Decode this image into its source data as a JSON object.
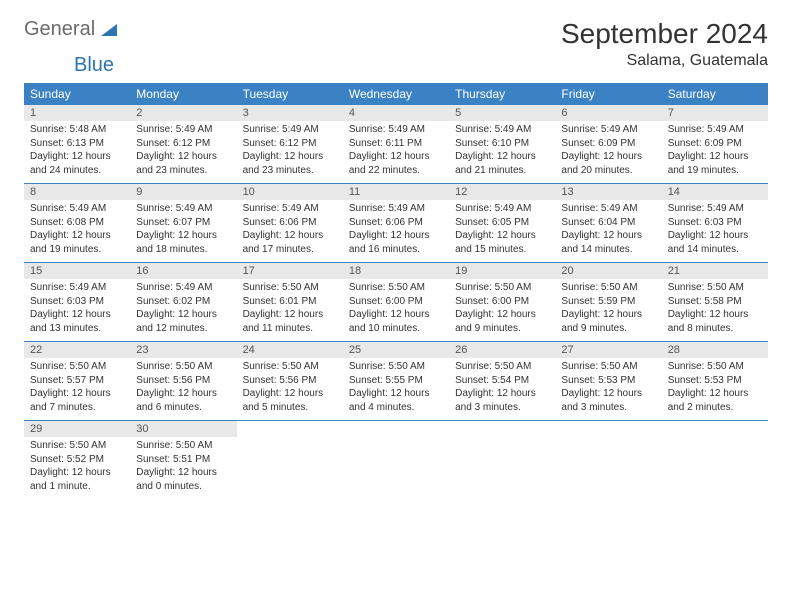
{
  "logo": {
    "text1": "General",
    "text2": "Blue"
  },
  "title": {
    "month": "September 2024",
    "location": "Salama, Guatemala"
  },
  "colors": {
    "header_bg": "#3b82c4",
    "header_text": "#ffffff",
    "daynum_bg": "#e8e8e8",
    "row_border": "#3b82c4",
    "body_text": "#333333",
    "logo_gray": "#6b6b6b",
    "logo_blue": "#2e74b5"
  },
  "weekdays": [
    "Sunday",
    "Monday",
    "Tuesday",
    "Wednesday",
    "Thursday",
    "Friday",
    "Saturday"
  ],
  "weeks": [
    [
      {
        "n": "1",
        "sr": "5:48 AM",
        "ss": "6:13 PM",
        "dl": "12 hours and 24 minutes."
      },
      {
        "n": "2",
        "sr": "5:49 AM",
        "ss": "6:12 PM",
        "dl": "12 hours and 23 minutes."
      },
      {
        "n": "3",
        "sr": "5:49 AM",
        "ss": "6:12 PM",
        "dl": "12 hours and 23 minutes."
      },
      {
        "n": "4",
        "sr": "5:49 AM",
        "ss": "6:11 PM",
        "dl": "12 hours and 22 minutes."
      },
      {
        "n": "5",
        "sr": "5:49 AM",
        "ss": "6:10 PM",
        "dl": "12 hours and 21 minutes."
      },
      {
        "n": "6",
        "sr": "5:49 AM",
        "ss": "6:09 PM",
        "dl": "12 hours and 20 minutes."
      },
      {
        "n": "7",
        "sr": "5:49 AM",
        "ss": "6:09 PM",
        "dl": "12 hours and 19 minutes."
      }
    ],
    [
      {
        "n": "8",
        "sr": "5:49 AM",
        "ss": "6:08 PM",
        "dl": "12 hours and 19 minutes."
      },
      {
        "n": "9",
        "sr": "5:49 AM",
        "ss": "6:07 PM",
        "dl": "12 hours and 18 minutes."
      },
      {
        "n": "10",
        "sr": "5:49 AM",
        "ss": "6:06 PM",
        "dl": "12 hours and 17 minutes."
      },
      {
        "n": "11",
        "sr": "5:49 AM",
        "ss": "6:06 PM",
        "dl": "12 hours and 16 minutes."
      },
      {
        "n": "12",
        "sr": "5:49 AM",
        "ss": "6:05 PM",
        "dl": "12 hours and 15 minutes."
      },
      {
        "n": "13",
        "sr": "5:49 AM",
        "ss": "6:04 PM",
        "dl": "12 hours and 14 minutes."
      },
      {
        "n": "14",
        "sr": "5:49 AM",
        "ss": "6:03 PM",
        "dl": "12 hours and 14 minutes."
      }
    ],
    [
      {
        "n": "15",
        "sr": "5:49 AM",
        "ss": "6:03 PM",
        "dl": "12 hours and 13 minutes."
      },
      {
        "n": "16",
        "sr": "5:49 AM",
        "ss": "6:02 PM",
        "dl": "12 hours and 12 minutes."
      },
      {
        "n": "17",
        "sr": "5:50 AM",
        "ss": "6:01 PM",
        "dl": "12 hours and 11 minutes."
      },
      {
        "n": "18",
        "sr": "5:50 AM",
        "ss": "6:00 PM",
        "dl": "12 hours and 10 minutes."
      },
      {
        "n": "19",
        "sr": "5:50 AM",
        "ss": "6:00 PM",
        "dl": "12 hours and 9 minutes."
      },
      {
        "n": "20",
        "sr": "5:50 AM",
        "ss": "5:59 PM",
        "dl": "12 hours and 9 minutes."
      },
      {
        "n": "21",
        "sr": "5:50 AM",
        "ss": "5:58 PM",
        "dl": "12 hours and 8 minutes."
      }
    ],
    [
      {
        "n": "22",
        "sr": "5:50 AM",
        "ss": "5:57 PM",
        "dl": "12 hours and 7 minutes."
      },
      {
        "n": "23",
        "sr": "5:50 AM",
        "ss": "5:56 PM",
        "dl": "12 hours and 6 minutes."
      },
      {
        "n": "24",
        "sr": "5:50 AM",
        "ss": "5:56 PM",
        "dl": "12 hours and 5 minutes."
      },
      {
        "n": "25",
        "sr": "5:50 AM",
        "ss": "5:55 PM",
        "dl": "12 hours and 4 minutes."
      },
      {
        "n": "26",
        "sr": "5:50 AM",
        "ss": "5:54 PM",
        "dl": "12 hours and 3 minutes."
      },
      {
        "n": "27",
        "sr": "5:50 AM",
        "ss": "5:53 PM",
        "dl": "12 hours and 3 minutes."
      },
      {
        "n": "28",
        "sr": "5:50 AM",
        "ss": "5:53 PM",
        "dl": "12 hours and 2 minutes."
      }
    ],
    [
      {
        "n": "29",
        "sr": "5:50 AM",
        "ss": "5:52 PM",
        "dl": "12 hours and 1 minute."
      },
      {
        "n": "30",
        "sr": "5:50 AM",
        "ss": "5:51 PM",
        "dl": "12 hours and 0 minutes."
      },
      null,
      null,
      null,
      null,
      null
    ]
  ],
  "labels": {
    "sunrise": "Sunrise:",
    "sunset": "Sunset:",
    "daylight": "Daylight:"
  }
}
